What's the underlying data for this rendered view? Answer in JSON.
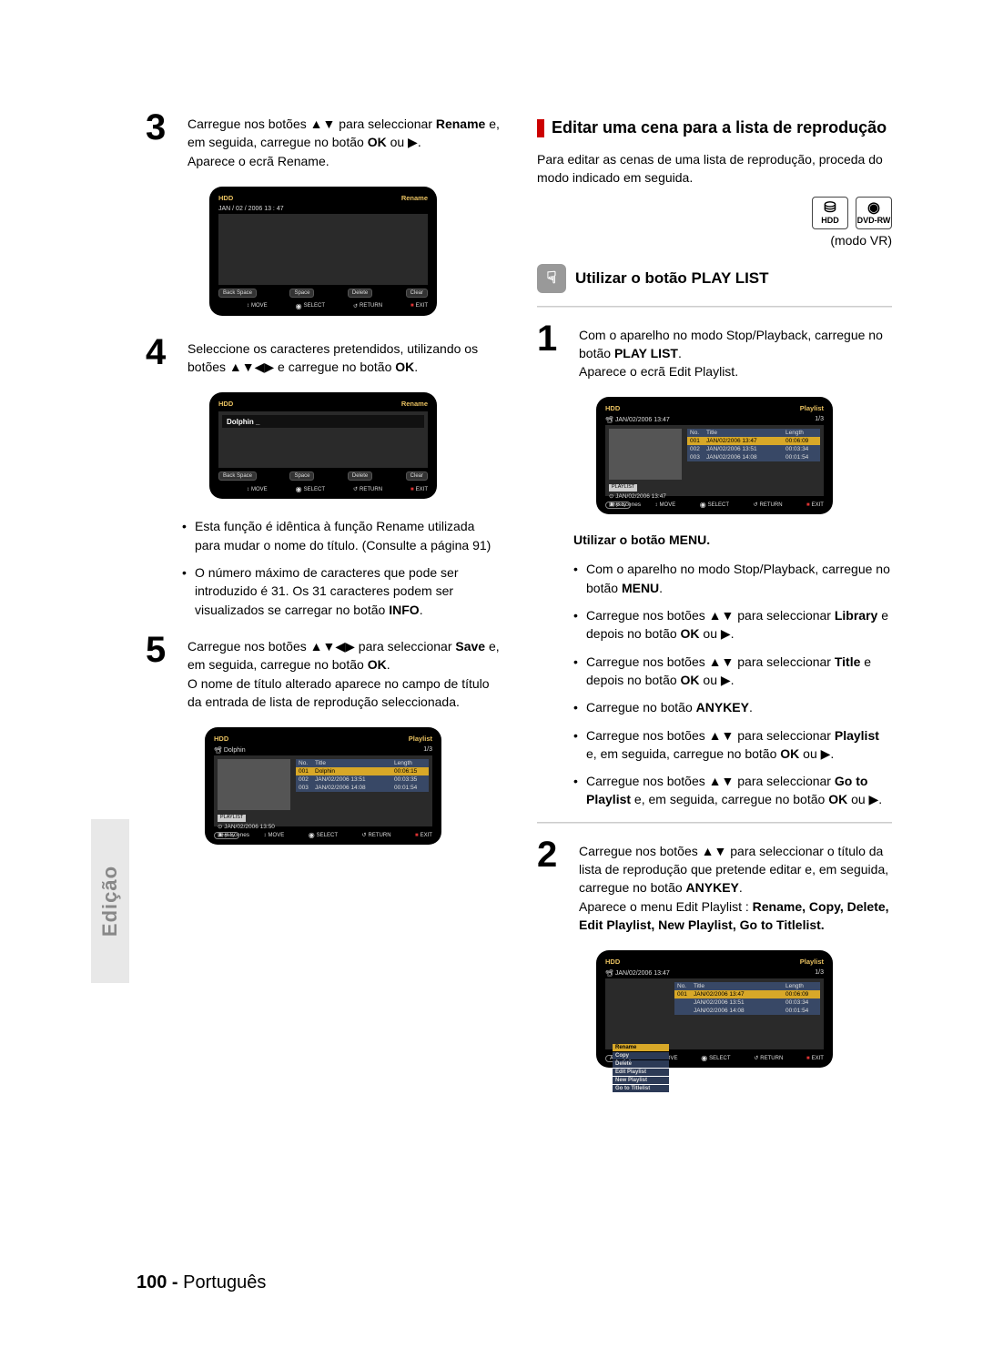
{
  "side_tab": "Edição",
  "footer": {
    "page": "100 -",
    "lang": "Português"
  },
  "left": {
    "step3": {
      "num": "3",
      "text_a": "Carregue nos botões ▲▼ para seleccionar ",
      "b1": "Rename",
      "text_b": " e, em seguida, carregue no botão ",
      "b2": "OK",
      "text_c": " ou ▶.",
      "line2": "Aparece o ecrã Rename."
    },
    "screen_a": {
      "hdd": "HDD",
      "right": "Rename",
      "date": "JAN / 02 / 2006   13 : 47",
      "btns": [
        "Back Space",
        "Space",
        "Delete",
        "Clear"
      ],
      "foot": [
        "MOVE",
        "SELECT",
        "RETURN",
        "EXIT"
      ]
    },
    "step4": {
      "num": "4",
      "text_a": "Seleccione os caracteres pretendidos, utilizando os botões ▲▼◀▶ e carregue no botão ",
      "b1": "OK",
      "text_b": "."
    },
    "screen_b": {
      "hdd": "HDD",
      "right": "Rename",
      "input": "Dolphin _",
      "btns": [
        "Back Space",
        "Space",
        "Delete",
        "Clear"
      ],
      "foot": [
        "MOVE",
        "SELECT",
        "RETURN",
        "EXIT"
      ]
    },
    "bullets1": [
      "Esta função é idêntica à função Rename utilizada para mudar o nome do título. (Consulte a página 91)",
      "O número máximo de caracteres que pode ser introduzido é 31. Os 31 caracteres podem ser visualizados se carregar no botão <b>INFO</b>."
    ],
    "step5": {
      "num": "5",
      "text_a": "Carregue nos botões ▲▼◀▶ para seleccionar ",
      "b1": "Save",
      "text_b": " e, em seguida, carregue no botão ",
      "b2": "OK",
      "text_c": ".",
      "line2": "O nome de título alterado aparece no campo de título da entrada de lista de reprodução seleccionada."
    },
    "screen_c": {
      "hdd": "HDD",
      "right": "Playlist",
      "count": "1/3",
      "date": "Dolphin",
      "cols": [
        "No.",
        "Title",
        "Length"
      ],
      "rows": [
        [
          "001",
          "Dolphin",
          "00:06:15"
        ],
        [
          "002",
          "JAN/02/2006 13:51",
          "00:03:35"
        ],
        [
          "003",
          "JAN/02/2006 14:08",
          "00:01:54"
        ]
      ],
      "meta_time": "JAN/02/2006 13:50",
      "meta_scenes": "6 Scenes",
      "foot": [
        "MOVE",
        "SELECT",
        "RETURN",
        "EXIT"
      ]
    }
  },
  "right": {
    "title": "Editar uma cena para a lista de reprodução",
    "intro": "Para editar as cenas de uma lista de reprodução, proceda do modo indicado em seguida.",
    "icons": {
      "hdd": "HDD",
      "dvd": "DVD-RW"
    },
    "modo": "(modo VR)",
    "subhead": "Utilizar o botão PLAY LIST",
    "step1": {
      "num": "1",
      "text_a": "Com o aparelho no modo Stop/Playback, carregue no botão ",
      "b1": "PLAY LIST",
      "text_b": ".",
      "line2": "Aparece o ecrã Edit Playlist."
    },
    "screen_d": {
      "hdd": "HDD",
      "right": "Playlist",
      "count": "1/3",
      "date": "JAN/02/2006 13:47",
      "cols": [
        "No.",
        "Title",
        "Length"
      ],
      "rows": [
        [
          "001",
          "JAN/02/2006 13:47",
          "00:06:09"
        ],
        [
          "002",
          "JAN/02/2006 13:51",
          "00:03:34"
        ],
        [
          "003",
          "JAN/02/2006 14:08",
          "00:01:54"
        ]
      ],
      "meta_time": "JAN/02/2006 13:47",
      "meta_scenes": "6 Scenes",
      "foot": [
        "MOVE",
        "SELECT",
        "RETURN",
        "EXIT"
      ]
    },
    "subtitle": "Utilizar o botão MENU.",
    "bullets2": [
      "Com o aparelho no modo Stop/Playback, carregue no botão <b>MENU</b>.",
      "Carregue nos botões ▲▼ para seleccionar <b>Library</b> e depois no botão <b>OK</b> ou ▶.",
      "Carregue nos botões ▲▼ para seleccionar <b>Title</b> e depois no botão <b>OK</b> ou ▶.",
      "Carregue no botão <b>ANYKEY</b>.",
      "Carregue nos botões ▲▼ para seleccionar <b>Playlist</b> e, em seguida, carregue no botão <b>OK</b> ou ▶.",
      "Carregue nos botões ▲▼ para seleccionar <b>Go to Playlist</b> e, em seguida, carregue no botão <b>OK</b> ou ▶."
    ],
    "step2": {
      "num": "2",
      "text_a": "Carregue nos botões ▲▼ para seleccionar o título da lista de reprodução que pretende editar e, em seguida, carregue no botão ",
      "b1": "ANYKEY",
      "text_b": ".",
      "line2a": "Aparece o menu Edit Playlist :  ",
      "line2b": "Rename, Copy, Delete, Edit Playlist, New Playlist, Go to Titlelist."
    },
    "screen_e": {
      "hdd": "HDD",
      "right": "Playlist",
      "count": "1/3",
      "date": "JAN/02/2006 13:47",
      "cols": [
        "No.",
        "Title",
        "Length"
      ],
      "rows": [
        [
          "001",
          "JAN/02/2006 13:47",
          "00:06:09"
        ],
        [
          "",
          "JAN/02/2006 13:51",
          "00:03:34"
        ],
        [
          "",
          "JAN/02/2006 14:08",
          "00:01:54"
        ]
      ],
      "menu": [
        "Rename",
        "Copy",
        "Delete",
        "Edit Playlist",
        "New Playlist",
        "Go to Titlelist"
      ],
      "foot": [
        "MOVE",
        "SELECT",
        "RETURN",
        "EXIT"
      ]
    }
  }
}
